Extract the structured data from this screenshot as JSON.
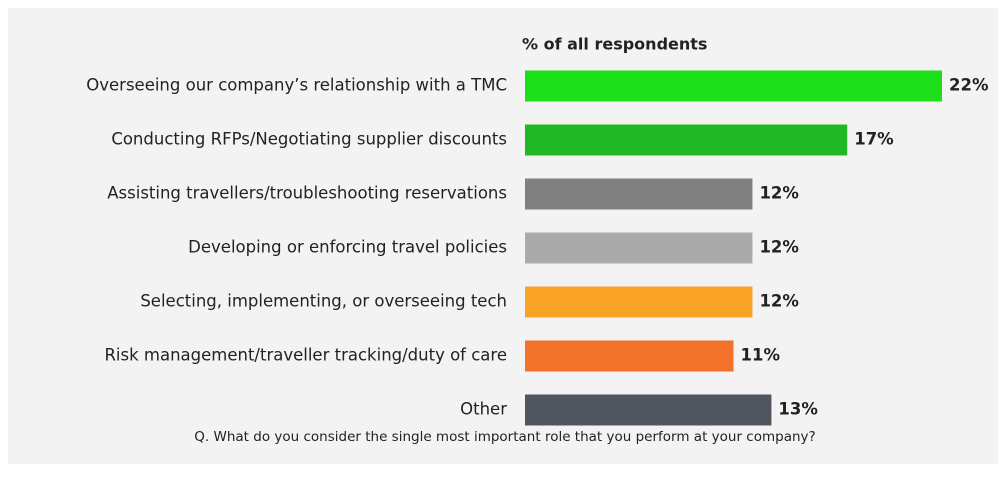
{
  "chart_data": {
    "type": "bar",
    "orientation": "horizontal",
    "subtitle": "% of all respondents",
    "categories": [
      "Overseeing our company’s relationship with a TMC",
      "Conducting RFPs/Negotiating supplier discounts",
      "Assisting travellers/troubleshooting reservations",
      "Developing or enforcing travel policies",
      "Selecting, implementing, or overseeing tech",
      "Risk management/traveller tracking/duty of care",
      "Other"
    ],
    "values": [
      22,
      17,
      12,
      12,
      12,
      11,
      13
    ],
    "value_labels": [
      "22%",
      "17%",
      "12%",
      "12%",
      "12%",
      "11%",
      "13%"
    ],
    "colors": [
      "#1ee01a",
      "#22b825",
      "#808080",
      "#aaaaaa",
      "#f8a326",
      "#f2722a",
      "#50555e"
    ],
    "note": "Q. What do you consider the single most important role that you perform at your company?"
  }
}
